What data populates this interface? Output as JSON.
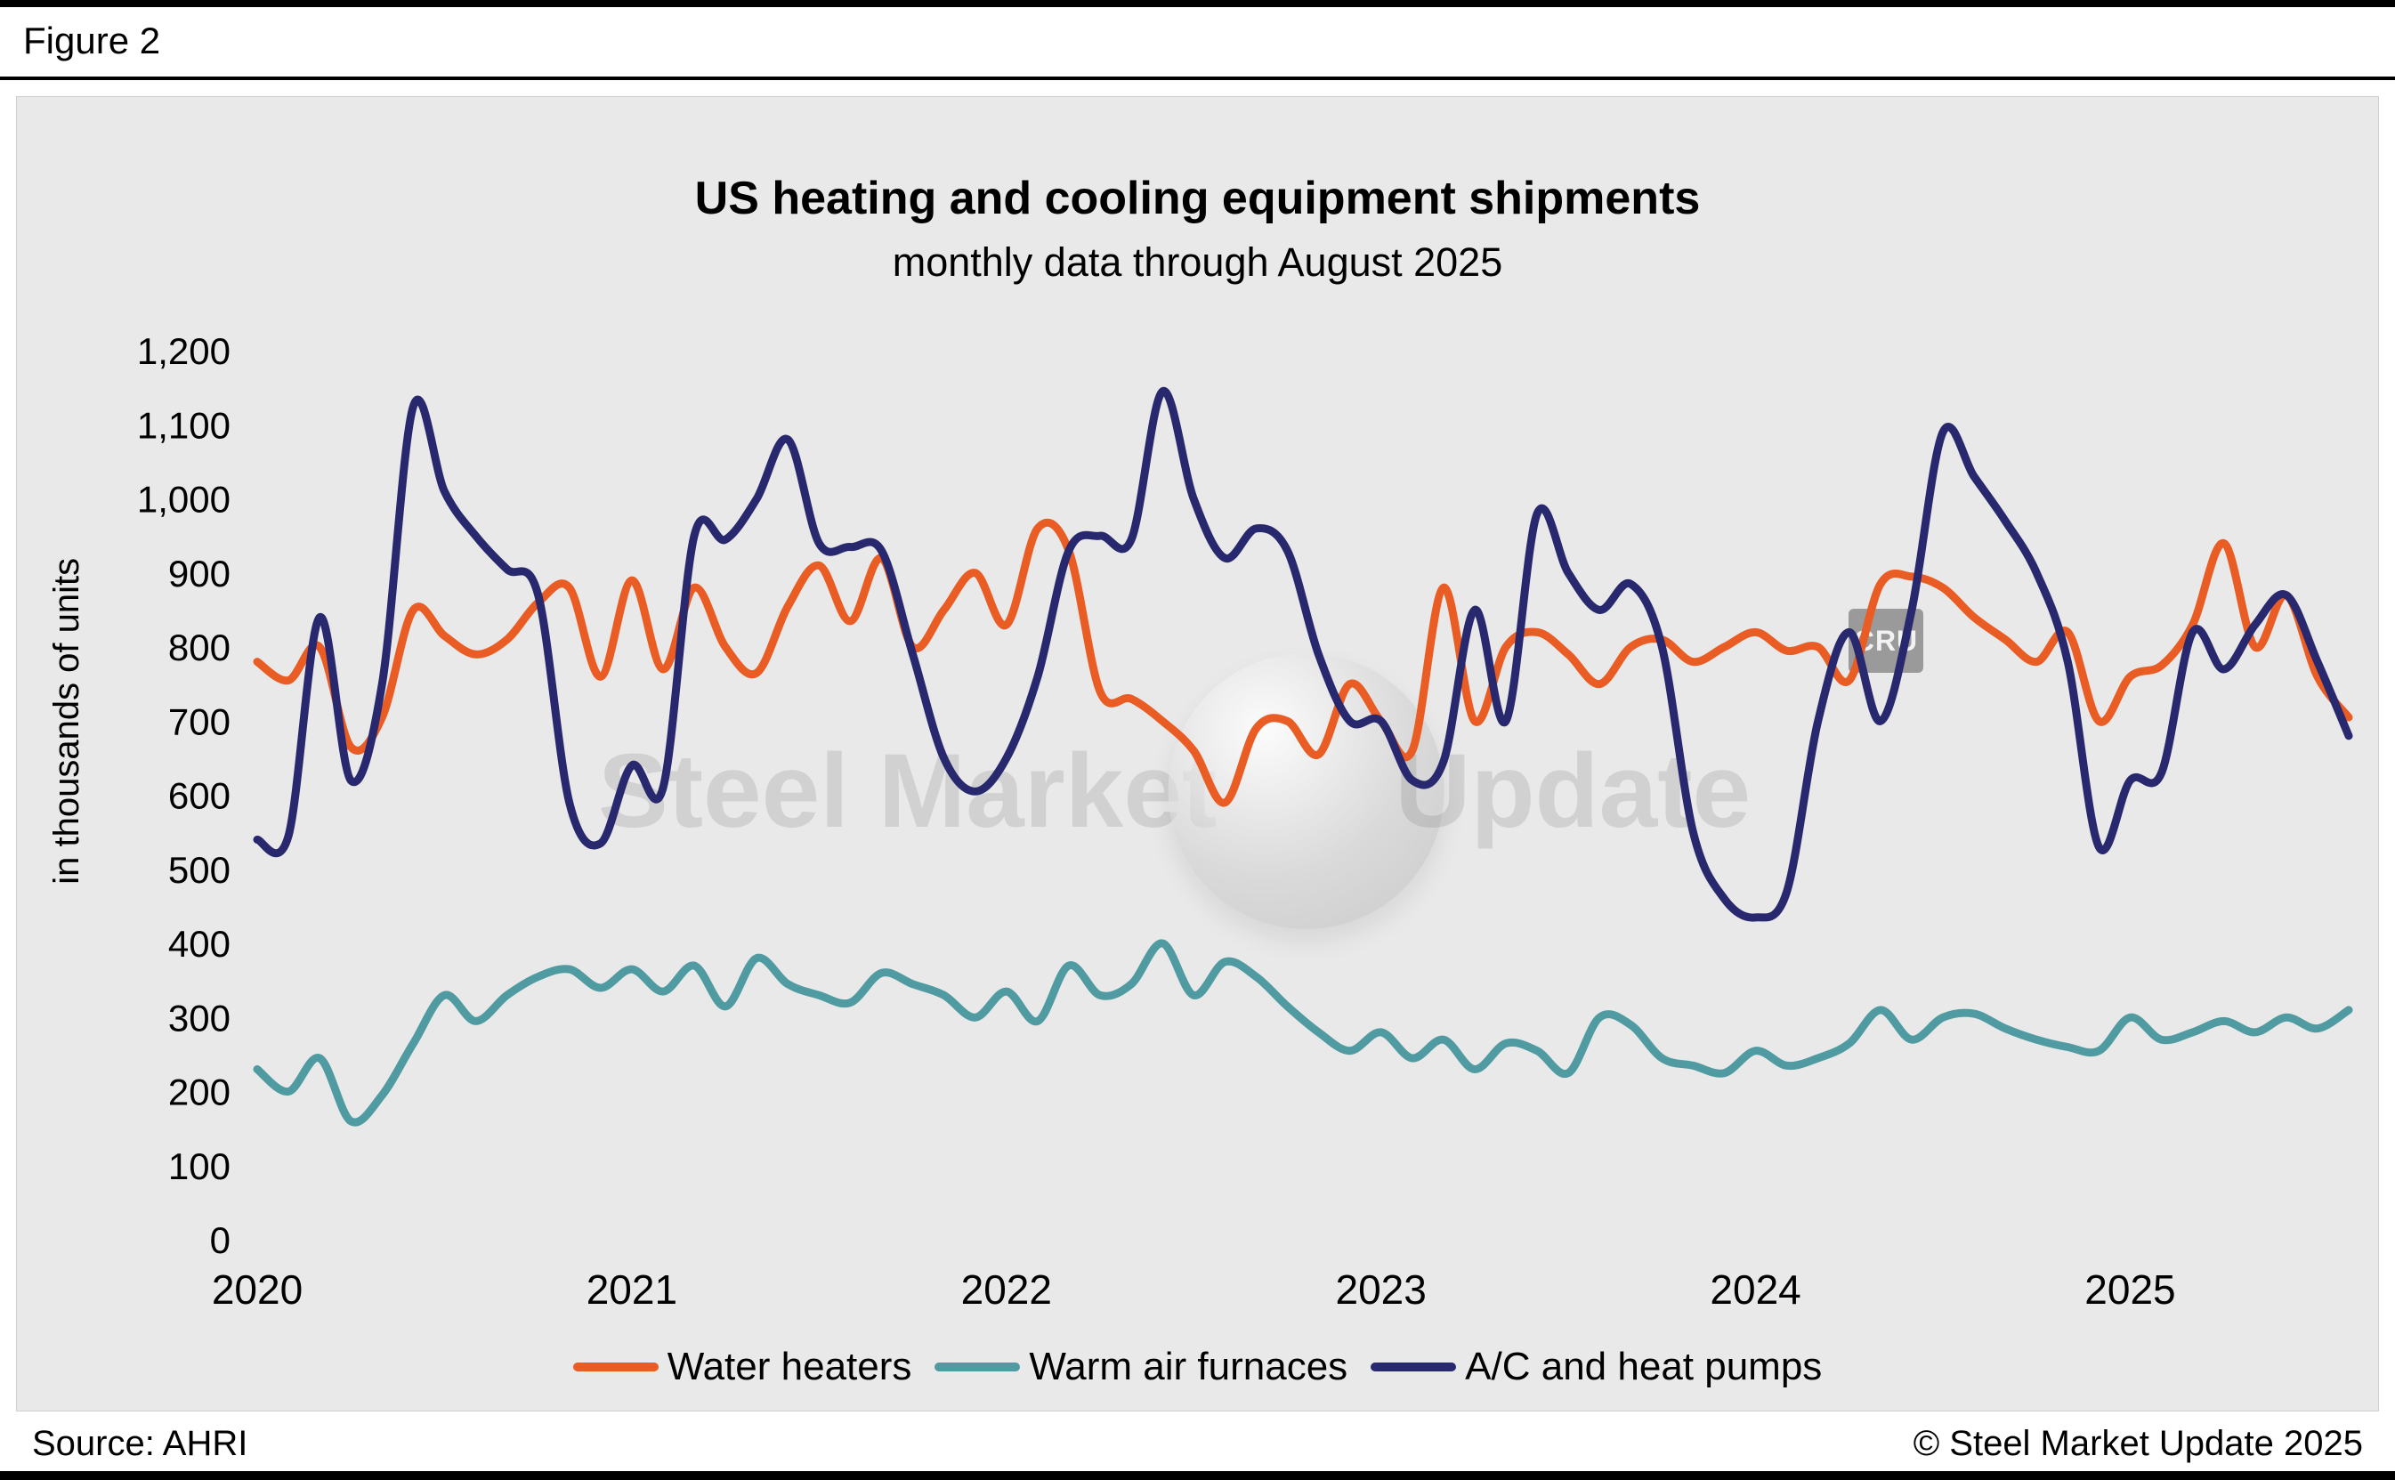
{
  "figure_label": "Figure 2",
  "chart_data": {
    "type": "line",
    "title": "US heating and cooling equipment shipments",
    "subtitle": "monthly data through August 2025",
    "ylabel": "in thousands of units",
    "ylim": [
      0,
      1200
    ],
    "y_tick_step": 100,
    "x_start": "Jan 2020",
    "x_end": "Aug 2025",
    "x_tick_labels": [
      "2020",
      "2021",
      "2022",
      "2023",
      "2024",
      "2025"
    ],
    "x_tick_month_index": [
      0,
      12,
      24,
      36,
      48,
      60
    ],
    "grid": false,
    "legend_position": "bottom",
    "series": [
      {
        "name": "Water heaters",
        "color": "#e95c24",
        "values": [
          780,
          755,
          800,
          665,
          705,
          850,
          815,
          790,
          810,
          860,
          880,
          760,
          890,
          770,
          880,
          800,
          765,
          855,
          910,
          835,
          920,
          800,
          850,
          900,
          830,
          960,
          930,
          740,
          730,
          700,
          660,
          590,
          690,
          700,
          655,
          750,
          700,
          660,
          880,
          700,
          800,
          820,
          790,
          750,
          800,
          810,
          780,
          800,
          820,
          795,
          800,
          755,
          885,
          895,
          880,
          840,
          810,
          780,
          820,
          700,
          760,
          775,
          830,
          940,
          800,
          870,
          760,
          705
        ]
      },
      {
        "name": "Warm air furnaces",
        "color": "#4f9ba1",
        "values": [
          230,
          200,
          245,
          160,
          195,
          265,
          330,
          295,
          330,
          355,
          365,
          340,
          365,
          335,
          370,
          315,
          380,
          345,
          330,
          320,
          360,
          345,
          330,
          300,
          335,
          295,
          370,
          330,
          345,
          400,
          330,
          375,
          355,
          315,
          280,
          255,
          280,
          245,
          270,
          230,
          265,
          255,
          225,
          300,
          290,
          245,
          235,
          225,
          255,
          235,
          245,
          265,
          310,
          270,
          300,
          305,
          285,
          270,
          260,
          255,
          300,
          270,
          280,
          295,
          280,
          300,
          285,
          310
        ]
      },
      {
        "name": "A/C and heat pumps",
        "color": "#28286e",
        "values": [
          540,
          545,
          840,
          620,
          750,
          1125,
          1010,
          950,
          905,
          870,
          590,
          535,
          640,
          610,
          950,
          945,
          1000,
          1080,
          940,
          935,
          930,
          790,
          650,
          605,
          650,
          760,
          930,
          950,
          945,
          1145,
          1000,
          920,
          960,
          930,
          790,
          700,
          700,
          620,
          645,
          850,
          700,
          980,
          900,
          850,
          885,
          800,
          550,
          460,
          435,
          470,
          700,
          820,
          700,
          850,
          1090,
          1030,
          970,
          900,
          780,
          530,
          620,
          630,
          820,
          770,
          830,
          870,
          780,
          680
        ]
      }
    ]
  },
  "watermark": {
    "text_left": "Steel Market",
    "text_right": "Update",
    "badge": "CRU"
  },
  "footer": {
    "source": "Source: AHRI",
    "copyright": "© Steel Market Update 2025"
  },
  "colors": {
    "panel_bg": "#e9e9e9",
    "rule": "#000000"
  }
}
